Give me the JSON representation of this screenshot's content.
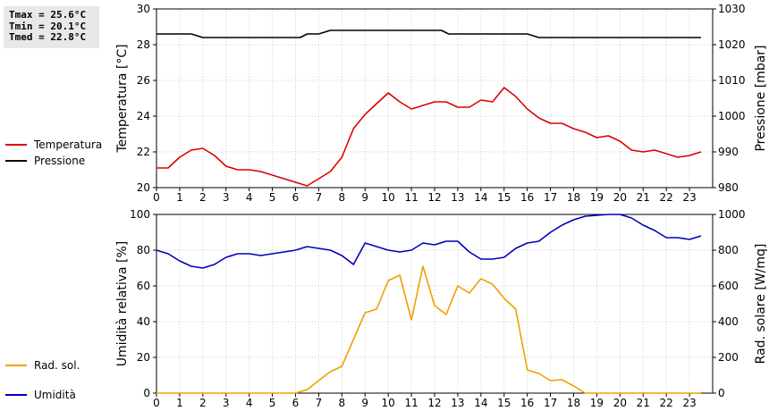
{
  "stats": {
    "tmax": "Tmax = 25.6°C",
    "tmin": "Tmin = 20.1°C",
    "tmed": "Tmed = 22.8°C"
  },
  "chart_data": [
    {
      "type": "line",
      "x_ticks": [
        "0",
        "1",
        "2",
        "3",
        "4",
        "5",
        "6",
        "7",
        "8",
        "9",
        "10",
        "11",
        "12",
        "13",
        "14",
        "15",
        "16",
        "17",
        "18",
        "19",
        "20",
        "21",
        "22",
        "23"
      ],
      "xlim": [
        0,
        24
      ],
      "ylabel_left": "Temperatura [°C]",
      "ylabel_right": "Pressione [mbar]",
      "ylim_left": [
        20,
        30
      ],
      "ylim_right": [
        980,
        1030
      ],
      "yticks_left": [
        20,
        22,
        24,
        26,
        28,
        30
      ],
      "yticks_right": [
        980,
        990,
        1000,
        1010,
        1020,
        1030
      ],
      "grid": true,
      "series": [
        {
          "name": "Temperatura",
          "color": "#dd0000",
          "axis": "left",
          "x": [
            0,
            0.5,
            1,
            1.5,
            2,
            2.5,
            3,
            3.5,
            4,
            4.5,
            5,
            5.5,
            6,
            6.5,
            7,
            7.5,
            8,
            8.5,
            9,
            9.5,
            10,
            10.5,
            11,
            11.5,
            12,
            12.5,
            13,
            13.5,
            14,
            14.5,
            15,
            15.5,
            16,
            16.5,
            17,
            17.5,
            18,
            18.5,
            19,
            19.5,
            20,
            20.5,
            21,
            21.5,
            22,
            22.5,
            23,
            23.5
          ],
          "y": [
            21.1,
            21.1,
            21.7,
            22.1,
            22.2,
            21.8,
            21.2,
            21.0,
            21.0,
            20.9,
            20.7,
            20.5,
            20.3,
            20.1,
            20.5,
            20.9,
            21.7,
            23.3,
            24.1,
            24.7,
            25.3,
            24.8,
            24.4,
            24.6,
            24.8,
            24.8,
            24.5,
            24.5,
            24.9,
            24.8,
            25.6,
            25.1,
            24.4,
            23.9,
            23.6,
            23.6,
            23.3,
            23.1,
            22.8,
            22.9,
            22.6,
            22.1,
            22.0,
            22.1,
            21.9,
            21.7,
            21.8,
            22.0
          ]
        },
        {
          "name": "Pressione",
          "color": "#000000",
          "axis": "right",
          "x": [
            0,
            1.5,
            2,
            6.2,
            6.5,
            7,
            7.5,
            12.3,
            12.6,
            16,
            16.5,
            23.5
          ],
          "y": [
            1023,
            1023,
            1022,
            1022,
            1023,
            1023,
            1024,
            1024,
            1023,
            1023,
            1022,
            1022
          ]
        }
      ]
    },
    {
      "type": "line",
      "x_ticks": [
        "0",
        "1",
        "2",
        "3",
        "4",
        "5",
        "6",
        "7",
        "8",
        "9",
        "10",
        "11",
        "12",
        "13",
        "14",
        "15",
        "16",
        "17",
        "18",
        "19",
        "20",
        "21",
        "22",
        "23"
      ],
      "xlim": [
        0,
        24
      ],
      "ylabel_left": "Umidità relativa [%]",
      "ylabel_right": "Rad. solare [W/mq]",
      "ylim_left": [
        0,
        100
      ],
      "ylim_right": [
        0,
        1000
      ],
      "yticks_left": [
        0,
        20,
        40,
        60,
        80,
        100
      ],
      "yticks_right": [
        0,
        200,
        400,
        600,
        800,
        1000
      ],
      "grid": true,
      "series": [
        {
          "name": "Umidità",
          "color": "#0000bb",
          "axis": "left",
          "x": [
            0,
            0.5,
            1,
            1.5,
            2,
            2.5,
            3,
            3.5,
            4,
            4.5,
            5,
            5.5,
            6,
            6.5,
            7,
            7.5,
            8,
            8.5,
            9,
            9.5,
            10,
            10.5,
            11,
            11.5,
            12,
            12.5,
            13,
            13.5,
            14,
            14.5,
            15,
            15.5,
            16,
            16.5,
            17,
            17.5,
            18,
            18.5,
            19,
            19.5,
            20,
            20.5,
            21,
            21.5,
            22,
            22.5,
            23,
            23.5
          ],
          "y": [
            80,
            78,
            74,
            71,
            70,
            72,
            76,
            78,
            78,
            77,
            78,
            79,
            80,
            82,
            81,
            80,
            77,
            72,
            84,
            82,
            80,
            79,
            80,
            84,
            83,
            85,
            85,
            79,
            75,
            75,
            76,
            81,
            84,
            85,
            90,
            94,
            97,
            99,
            99.5,
            100,
            100,
            98,
            94,
            91,
            87,
            87,
            86,
            88
          ]
        },
        {
          "name": "Rad. sol.",
          "color": "#f0a000",
          "axis": "right",
          "x": [
            0,
            0.5,
            1,
            1.5,
            2,
            2.5,
            3,
            3.5,
            4,
            4.5,
            5,
            5.5,
            6,
            6.5,
            7,
            7.5,
            8,
            8.5,
            9,
            9.5,
            10,
            10.5,
            11,
            11.5,
            12,
            12.5,
            13,
            13.5,
            14,
            14.5,
            15,
            15.5,
            16,
            16.5,
            17,
            17.5,
            18,
            18.5,
            19,
            19.5,
            20,
            20.5,
            21,
            21.5,
            22,
            22.5,
            23,
            23.5
          ],
          "y": [
            0,
            0,
            0,
            0,
            0,
            0,
            0,
            0,
            0,
            0,
            0,
            0,
            0,
            20,
            70,
            120,
            150,
            300,
            450,
            470,
            630,
            660,
            410,
            710,
            490,
            440,
            600,
            560,
            640,
            610,
            530,
            470,
            130,
            110,
            70,
            75,
            40,
            0,
            0,
            0,
            0,
            0,
            0,
            0,
            0,
            0,
            0,
            0
          ]
        }
      ]
    }
  ]
}
